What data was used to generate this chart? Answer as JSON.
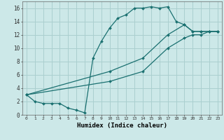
{
  "background_color": "#cce8e8",
  "grid_color": "#aacfcf",
  "line_color": "#1a7070",
  "xlabel": "Humidex (Indice chaleur)",
  "xlim": [
    -0.5,
    23.5
  ],
  "ylim": [
    0,
    17
  ],
  "xticks": [
    0,
    1,
    2,
    3,
    4,
    5,
    6,
    7,
    8,
    9,
    10,
    11,
    12,
    13,
    14,
    15,
    16,
    17,
    18,
    19,
    20,
    21,
    22,
    23
  ],
  "yticks": [
    0,
    2,
    4,
    6,
    8,
    10,
    12,
    14,
    16
  ],
  "series": [
    {
      "x": [
        0,
        1,
        2,
        3,
        4,
        5,
        6,
        7,
        8,
        9,
        10,
        11,
        12,
        13,
        14,
        15,
        16,
        17,
        18,
        19,
        20,
        21,
        22,
        23
      ],
      "y": [
        3,
        2,
        1.7,
        1.7,
        1.7,
        1.0,
        0.7,
        0.3,
        8.5,
        11.0,
        13.0,
        14.5,
        15.0,
        16.0,
        16.0,
        16.2,
        16.0,
        16.2,
        14.0,
        13.5,
        12.5,
        12.5,
        12.5,
        12.5
      ]
    },
    {
      "x": [
        0,
        10,
        14,
        17,
        19,
        20,
        21,
        22,
        23
      ],
      "y": [
        3,
        6.5,
        8.5,
        12.0,
        13.5,
        12.5,
        12.5,
        12.5,
        12.5
      ]
    },
    {
      "x": [
        0,
        10,
        14,
        17,
        19,
        20,
        21,
        22,
        23
      ],
      "y": [
        3,
        5.0,
        6.5,
        10.0,
        11.5,
        12.0,
        12.0,
        12.5,
        12.5
      ]
    }
  ]
}
